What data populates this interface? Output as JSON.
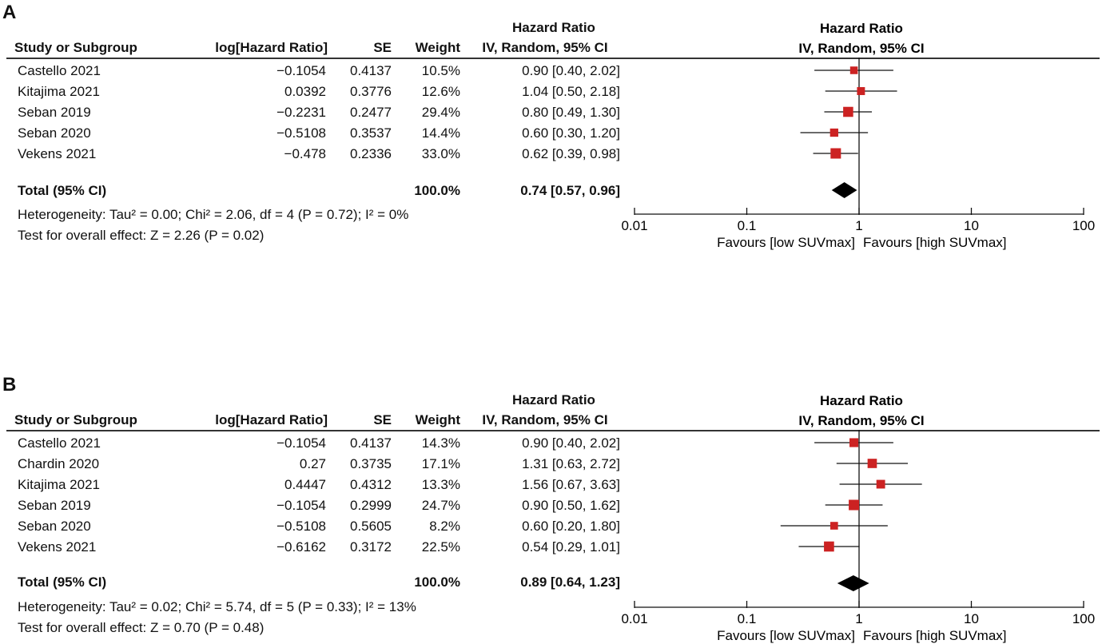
{
  "colors": {
    "marker": "#cc2222",
    "diamond": "#000000",
    "line": "#111111"
  },
  "columns": {
    "study": "Study or Subgroup",
    "log_hr": "log[Hazard Ratio]",
    "se": "SE",
    "weight": "Weight",
    "hr_title": "Hazard Ratio",
    "hr_method": "IV, Random, 95% CI"
  },
  "panels": [
    {
      "label": "A",
      "plot_title": "Hazard Ratio",
      "plot_subtitle": "IV, Random, 95% CI",
      "studies": [
        {
          "name": "Castello 2021",
          "log_hr": "−0.1054",
          "se": "0.4137",
          "weight": "10.5%",
          "ci": "0.90 [0.40, 2.02]"
        },
        {
          "name": "Kitajima 2021",
          "log_hr": "0.0392",
          "se": "0.3776",
          "weight": "12.6%",
          "ci": "1.04 [0.50, 2.18]"
        },
        {
          "name": "Seban 2019",
          "log_hr": "−0.2231",
          "se": "0.2477",
          "weight": "29.4%",
          "ci": "0.80 [0.49, 1.30]"
        },
        {
          "name": "Seban 2020",
          "log_hr": "−0.5108",
          "se": "0.3537",
          "weight": "14.4%",
          "ci": "0.60 [0.30, 1.20]"
        },
        {
          "name": "Vekens 2021",
          "log_hr": "−0.478",
          "se": "0.2336",
          "weight": "33.0%",
          "ci": "0.62 [0.39, 0.98]"
        }
      ],
      "total": {
        "label": "Total (95% CI)",
        "weight": "100.0%",
        "ci": "0.74 [0.57, 0.96]"
      },
      "heterogeneity": "Heterogeneity: Tau² = 0.00; Chi² = 2.06, df = 4 (P = 0.72); I² = 0%",
      "overall_effect": "Test for overall effect: Z = 2.26 (P = 0.02)",
      "axis_ticks": [
        "0.01",
        "0.1",
        "1",
        "10",
        "100"
      ],
      "favours_left": "Favours [low SUVmax]",
      "favours_right": "Favours [high SUVmax]"
    },
    {
      "label": "B",
      "plot_title": "Hazard Ratio",
      "plot_subtitle": "IV, Random, 95% CI",
      "studies": [
        {
          "name": "Castello 2021",
          "log_hr": "−0.1054",
          "se": "0.4137",
          "weight": "14.3%",
          "ci": "0.90 [0.40, 2.02]"
        },
        {
          "name": "Chardin 2020",
          "log_hr": "0.27",
          "se": "0.3735",
          "weight": "17.1%",
          "ci": "1.31 [0.63, 2.72]"
        },
        {
          "name": "Kitajima 2021",
          "log_hr": "0.4447",
          "se": "0.4312",
          "weight": "13.3%",
          "ci": "1.56 [0.67, 3.63]"
        },
        {
          "name": "Seban 2019",
          "log_hr": "−0.1054",
          "se": "0.2999",
          "weight": "24.7%",
          "ci": "0.90 [0.50, 1.62]"
        },
        {
          "name": "Seban 2020",
          "log_hr": "−0.5108",
          "se": "0.5605",
          "weight": "8.2%",
          "ci": "0.60 [0.20, 1.80]"
        },
        {
          "name": "Vekens 2021",
          "log_hr": "−0.6162",
          "se": "0.3172",
          "weight": "22.5%",
          "ci": "0.54 [0.29, 1.01]"
        }
      ],
      "total": {
        "label": "Total (95% CI)",
        "weight": "100.0%",
        "ci": "0.89 [0.64, 1.23]"
      },
      "heterogeneity": "Heterogeneity: Tau² = 0.02; Chi² = 5.74, df = 5 (P = 0.33); I² = 13%",
      "overall_effect": "Test for overall effect: Z = 0.70 (P = 0.48)",
      "axis_ticks": [
        "0.01",
        "0.1",
        "1",
        "10",
        "100"
      ],
      "favours_left": "Favours [low SUVmax]",
      "favours_right": "Favours [high SUVmax]"
    }
  ],
  "chart_data": [
    {
      "type": "forest",
      "panel": "A",
      "title": "Hazard Ratio",
      "subtitle": "IV, Random, 95% CI",
      "xscale": "log",
      "xlim": [
        0.01,
        100
      ],
      "reference_line": 1,
      "points": [
        {
          "label": "Castello 2021",
          "hr": 0.9,
          "lo": 0.4,
          "hi": 2.02,
          "weight": 10.5
        },
        {
          "label": "Kitajima 2021",
          "hr": 1.04,
          "lo": 0.5,
          "hi": 2.18,
          "weight": 12.6
        },
        {
          "label": "Seban 2019",
          "hr": 0.8,
          "lo": 0.49,
          "hi": 1.3,
          "weight": 29.4
        },
        {
          "label": "Seban 2020",
          "hr": 0.6,
          "lo": 0.3,
          "hi": 1.2,
          "weight": 14.4
        },
        {
          "label": "Vekens 2021",
          "hr": 0.62,
          "lo": 0.39,
          "hi": 0.98,
          "weight": 33.0
        }
      ],
      "total": {
        "hr": 0.74,
        "lo": 0.57,
        "hi": 0.96
      }
    },
    {
      "type": "forest",
      "panel": "B",
      "title": "Hazard Ratio",
      "subtitle": "IV, Random, 95% CI",
      "xscale": "log",
      "xlim": [
        0.01,
        100
      ],
      "reference_line": 1,
      "points": [
        {
          "label": "Castello 2021",
          "hr": 0.9,
          "lo": 0.4,
          "hi": 2.02,
          "weight": 14.3
        },
        {
          "label": "Chardin 2020",
          "hr": 1.31,
          "lo": 0.63,
          "hi": 2.72,
          "weight": 17.1
        },
        {
          "label": "Kitajima 2021",
          "hr": 1.56,
          "lo": 0.67,
          "hi": 3.63,
          "weight": 13.3
        },
        {
          "label": "Seban 2019",
          "hr": 0.9,
          "lo": 0.5,
          "hi": 1.62,
          "weight": 24.7
        },
        {
          "label": "Seban 2020",
          "hr": 0.6,
          "lo": 0.2,
          "hi": 1.8,
          "weight": 8.2
        },
        {
          "label": "Vekens 2021",
          "hr": 0.54,
          "lo": 0.29,
          "hi": 1.01,
          "weight": 22.5
        }
      ],
      "total": {
        "hr": 0.89,
        "lo": 0.64,
        "hi": 1.23
      }
    }
  ]
}
